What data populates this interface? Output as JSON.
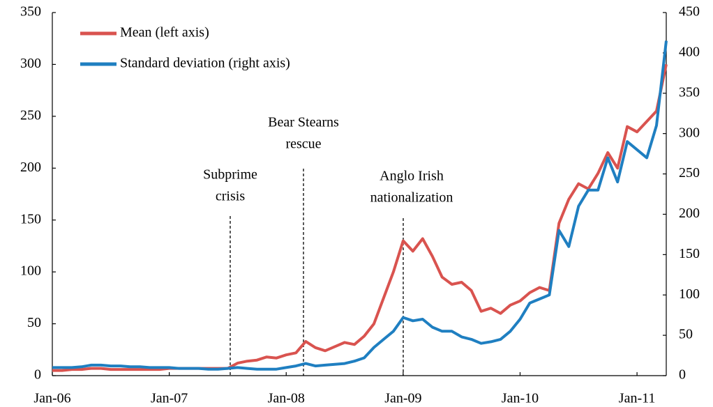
{
  "chart_data": {
    "type": "line",
    "categories": [
      "Jan-06",
      null,
      null,
      null,
      null,
      null,
      null,
      null,
      null,
      null,
      null,
      null,
      "Jan-07",
      null,
      null,
      null,
      null,
      null,
      null,
      null,
      null,
      null,
      null,
      null,
      "Jan-08",
      null,
      null,
      null,
      null,
      null,
      null,
      null,
      null,
      null,
      null,
      null,
      "Jan-09",
      null,
      null,
      null,
      null,
      null,
      null,
      null,
      null,
      null,
      null,
      null,
      "Jan-10",
      null,
      null,
      null,
      null,
      null,
      null,
      null,
      null,
      null,
      null,
      null,
      "Jan-11",
      null,
      null,
      null
    ],
    "series": [
      {
        "name": "Mean (left axis)",
        "color": "#d9534f",
        "values": [
          5,
          5,
          6,
          6,
          7,
          7,
          6,
          6,
          6,
          6,
          6,
          6,
          7,
          7,
          7,
          7,
          7,
          7,
          7,
          12,
          14,
          15,
          18,
          17,
          20,
          22,
          33,
          27,
          24,
          28,
          32,
          30,
          38,
          50,
          75,
          100,
          130,
          120,
          132,
          115,
          95,
          88,
          90,
          82,
          62,
          65,
          60,
          68,
          72,
          80,
          85,
          82,
          147,
          170,
          185,
          180,
          195,
          215,
          200,
          240,
          235,
          245,
          255,
          300
        ]
      },
      {
        "name": "Standard deviation (right axis)",
        "color": "#1f7fc1",
        "axis": "y2",
        "values": [
          10,
          10,
          10,
          11,
          13,
          13,
          12,
          12,
          11,
          11,
          10,
          10,
          10,
          9,
          9,
          9,
          8,
          8,
          9,
          10,
          9,
          8,
          8,
          8,
          10,
          12,
          15,
          12,
          13,
          14,
          15,
          18,
          22,
          35,
          45,
          55,
          72,
          68,
          70,
          60,
          55,
          55,
          48,
          45,
          40,
          42,
          45,
          55,
          70,
          90,
          95,
          100,
          180,
          160,
          210,
          230,
          230,
          270,
          240,
          290,
          280,
          270,
          310,
          415
        ]
      }
    ],
    "ylim": [
      0,
      350
    ],
    "yticks": [
      0,
      50,
      100,
      150,
      200,
      250,
      300,
      350
    ],
    "y2lim": [
      0,
      450
    ],
    "y2ticks": [
      0,
      50,
      100,
      150,
      200,
      250,
      300,
      350,
      400,
      450
    ],
    "legend": "upper left",
    "annotations": [
      {
        "lines": [
          "Subprime",
          "crisis"
        ]
      },
      {
        "lines": [
          "Bear Stearns",
          "rescue"
        ]
      },
      {
        "lines": [
          "Anglo Irish",
          "nationalization"
        ]
      }
    ]
  }
}
